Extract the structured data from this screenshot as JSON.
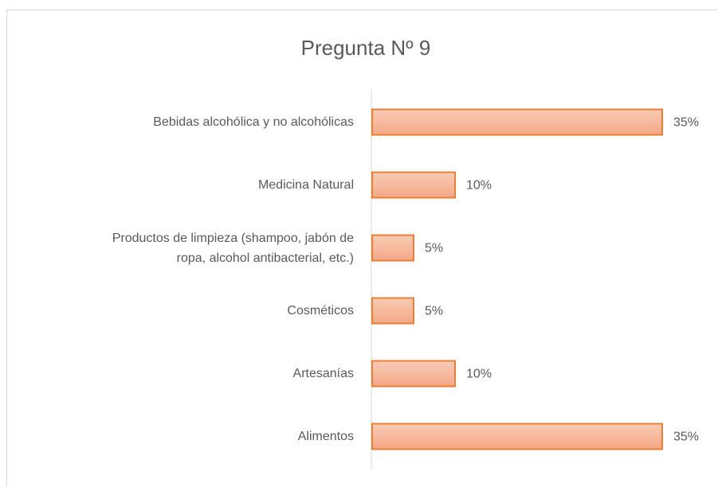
{
  "chart_data": {
    "type": "bar",
    "orientation": "horizontal",
    "title": "Pregunta Nº 9",
    "categories": [
      "Bebidas alcohólica y no alcohólicas",
      "Medicina Natural",
      "Productos de limpieza (shampoo, jabón de ropa, alcohol antibacterial, etc.)",
      "Cosméticos",
      "Artesanías",
      "Alimentos"
    ],
    "values": [
      35,
      10,
      5,
      5,
      10,
      35
    ],
    "value_labels": [
      "35%",
      "10%",
      "5%",
      "5%",
      "10%",
      "35%"
    ],
    "color": "#f4b197",
    "edge_color": "#ed7d31"
  }
}
